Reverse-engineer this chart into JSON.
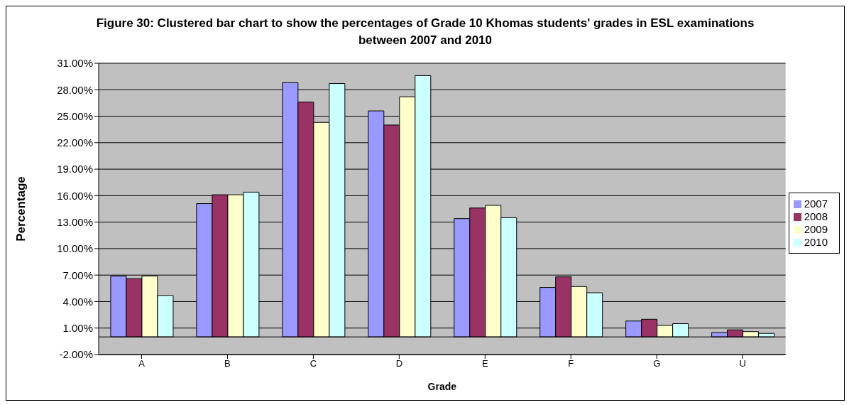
{
  "chart_data": {
    "type": "bar",
    "title": "Figure 30: Clustered bar chart to show the percentages of Grade 10 Khomas students' grades in ESL examinations between 2007 and 2010",
    "xlabel": "Grade",
    "ylabel": "Percentage",
    "categories": [
      "A",
      "B",
      "C",
      "D",
      "E",
      "F",
      "G",
      "U"
    ],
    "series": [
      {
        "name": "2007",
        "color": "#9999ff",
        "values": [
          6.9,
          15.1,
          28.8,
          25.6,
          13.4,
          5.6,
          1.8,
          0.5
        ]
      },
      {
        "name": "2008",
        "color": "#993366",
        "values": [
          6.6,
          16.1,
          26.6,
          24.0,
          14.6,
          6.8,
          2.0,
          0.8
        ]
      },
      {
        "name": "2009",
        "color": "#ffffcc",
        "values": [
          6.9,
          16.1,
          24.3,
          27.2,
          14.9,
          5.7,
          1.3,
          0.6
        ]
      },
      {
        "name": "2010",
        "color": "#ccffff",
        "values": [
          4.7,
          16.4,
          28.7,
          29.6,
          13.5,
          5.0,
          1.5,
          0.4
        ]
      }
    ],
    "ylim": [
      -2,
      31
    ],
    "yticks": [
      {
        "value": -2,
        "label": "-2.00%"
      },
      {
        "value": 1,
        "label": "1.00%"
      },
      {
        "value": 4,
        "label": "4.00%"
      },
      {
        "value": 7,
        "label": "7.00%"
      },
      {
        "value": 10,
        "label": "10.00%"
      },
      {
        "value": 13,
        "label": "13.00%"
      },
      {
        "value": 16,
        "label": "16.00%"
      },
      {
        "value": 19,
        "label": "19.00%"
      },
      {
        "value": 22,
        "label": "22.00%"
      },
      {
        "value": 25,
        "label": "25.00%"
      },
      {
        "value": 28,
        "label": "28.00%"
      },
      {
        "value": 31,
        "label": "31.00%"
      }
    ],
    "grid": "y",
    "legend": "right"
  }
}
